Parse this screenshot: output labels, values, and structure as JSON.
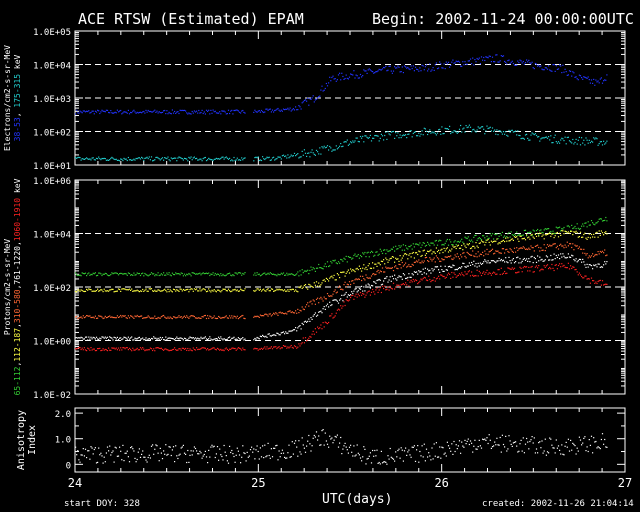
{
  "header": {
    "title": "ACE RTSW (Estimated) EPAM",
    "begin": "Begin: 2002-11-24 00:00:00UTC"
  },
  "footer": {
    "start_doy": "start DOY:  328",
    "xlabel": "UTC(days)",
    "created": "created:  2002-11-26 21:04:14"
  },
  "colors": {
    "background": "#000000",
    "axis": "#ffffff",
    "grid": "#ffffff",
    "e_low": "#2233ff",
    "e_high": "#22cccc",
    "p_low": "#33cc33",
    "p_mid1": "#ffff44",
    "p_mid2": "#ff6633",
    "p_mid3": "#ffffff",
    "p_high": "#ff2222",
    "aniso": "#ffffff"
  },
  "chart_data": [
    {
      "type": "scatter",
      "name": "electrons",
      "ylabel_prefix": "Electrons/cm2-s-sr-MeV",
      "ylabel_ranges": [
        {
          "text": "38-53",
          "color": "#2233ff"
        },
        {
          "text": ", ",
          "color": "#ffffff"
        },
        {
          "text": "175-315",
          "color": "#22cccc"
        },
        {
          "text": " keV",
          "color": "#ffffff"
        }
      ],
      "ytick_labels": [
        "1.0E+05",
        "1.0E+04",
        "1.0E+03",
        "1.0E+02",
        "1.0E+01"
      ],
      "ylim_log10": [
        1,
        5
      ],
      "log_scale": true,
      "gridlines_log10": [
        2,
        3,
        4
      ],
      "x_range_days": [
        24,
        27
      ],
      "data_gap_days": [
        24.93,
        24.97
      ],
      "series": [
        {
          "color_key": "e_low",
          "points": [
            [
              24.0,
              2.6
            ],
            [
              24.3,
              2.6
            ],
            [
              24.6,
              2.6
            ],
            [
              24.93,
              2.6
            ],
            [
              24.97,
              2.6
            ],
            [
              25.1,
              2.65
            ],
            [
              25.2,
              2.7
            ],
            [
              25.3,
              3.0
            ],
            [
              25.4,
              3.6
            ],
            [
              25.5,
              3.7
            ],
            [
              25.7,
              3.85
            ],
            [
              25.9,
              3.9
            ],
            [
              26.0,
              4.0
            ],
            [
              26.15,
              4.1
            ],
            [
              26.3,
              4.2
            ],
            [
              26.5,
              4.0
            ],
            [
              26.65,
              3.9
            ],
            [
              26.75,
              3.6
            ],
            [
              26.85,
              3.45
            ],
            [
              26.9,
              3.7
            ]
          ]
        },
        {
          "color_key": "e_high",
          "points": [
            [
              24.0,
              1.2
            ],
            [
              24.3,
              1.2
            ],
            [
              24.6,
              1.2
            ],
            [
              24.93,
              1.2
            ],
            [
              24.97,
              1.2
            ],
            [
              25.1,
              1.22
            ],
            [
              25.3,
              1.4
            ],
            [
              25.5,
              1.7
            ],
            [
              25.7,
              1.9
            ],
            [
              25.9,
              2.0
            ],
            [
              26.0,
              2.05
            ],
            [
              26.15,
              2.1
            ],
            [
              26.3,
              2.05
            ],
            [
              26.5,
              1.85
            ],
            [
              26.7,
              1.75
            ],
            [
              26.9,
              1.7
            ]
          ]
        }
      ]
    },
    {
      "type": "scatter",
      "name": "protons",
      "ylabel_prefix": "Protons/cm2-s-sr-MeV",
      "ylabel_ranges": [
        {
          "text": "65-112",
          "color": "#33cc33"
        },
        {
          "text": ",",
          "color": "#ffffff"
        },
        {
          "text": "112-187",
          "color": "#ffff44"
        },
        {
          "text": ",",
          "color": "#ffffff"
        },
        {
          "text": "310-580",
          "color": "#ff6633"
        },
        {
          "text": ",",
          "color": "#ffffff"
        },
        {
          "text": "761-1220",
          "color": "#ffffff"
        },
        {
          "text": ",",
          "color": "#ffffff"
        },
        {
          "text": "1060-1910",
          "color": "#ff2222"
        },
        {
          "text": " keV",
          "color": "#ffffff"
        }
      ],
      "ytick_labels": [
        "1.0E+06",
        "1.0E+04",
        "1.0E+02",
        "1.0E+00",
        "1.0E-02"
      ],
      "ylim_log10": [
        -2,
        6
      ],
      "log_scale": true,
      "gridlines_log10": [
        0,
        2,
        4
      ],
      "x_range_days": [
        24,
        27
      ],
      "data_gap_days": [
        24.93,
        24.97
      ],
      "series": [
        {
          "color_key": "p_low",
          "points": [
            [
              24.0,
              2.5
            ],
            [
              24.3,
              2.5
            ],
            [
              24.6,
              2.5
            ],
            [
              24.93,
              2.5
            ],
            [
              24.97,
              2.5
            ],
            [
              25.2,
              2.5
            ],
            [
              25.35,
              2.8
            ],
            [
              25.5,
              3.1
            ],
            [
              25.7,
              3.4
            ],
            [
              25.9,
              3.6
            ],
            [
              26.1,
              3.75
            ],
            [
              26.3,
              3.95
            ],
            [
              26.5,
              4.05
            ],
            [
              26.7,
              4.2
            ],
            [
              26.8,
              4.4
            ],
            [
              26.9,
              4.6
            ]
          ]
        },
        {
          "color_key": "p_mid1",
          "points": [
            [
              24.0,
              1.9
            ],
            [
              24.3,
              1.9
            ],
            [
              24.6,
              1.9
            ],
            [
              24.93,
              1.9
            ],
            [
              24.97,
              1.9
            ],
            [
              25.2,
              1.9
            ],
            [
              25.35,
              2.2
            ],
            [
              25.5,
              2.6
            ],
            [
              25.7,
              3.0
            ],
            [
              25.9,
              3.3
            ],
            [
              26.1,
              3.5
            ],
            [
              26.3,
              3.75
            ],
            [
              26.5,
              3.9
            ],
            [
              26.7,
              4.05
            ],
            [
              26.8,
              3.9
            ],
            [
              26.9,
              4.1
            ]
          ]
        },
        {
          "color_key": "p_mid2",
          "points": [
            [
              24.0,
              0.9
            ],
            [
              24.3,
              0.9
            ],
            [
              24.6,
              0.9
            ],
            [
              24.93,
              0.9
            ],
            [
              24.97,
              0.9
            ],
            [
              25.2,
              1.1
            ],
            [
              25.35,
              1.6
            ],
            [
              25.5,
              2.2
            ],
            [
              25.7,
              2.7
            ],
            [
              25.9,
              3.0
            ],
            [
              26.1,
              3.2
            ],
            [
              26.3,
              3.35
            ],
            [
              26.5,
              3.45
            ],
            [
              26.7,
              3.6
            ],
            [
              26.8,
              3.2
            ],
            [
              26.9,
              3.3
            ]
          ]
        },
        {
          "color_key": "p_mid3",
          "points": [
            [
              24.0,
              0.1
            ],
            [
              24.3,
              0.1
            ],
            [
              24.6,
              0.1
            ],
            [
              24.93,
              0.1
            ],
            [
              24.97,
              0.1
            ],
            [
              25.2,
              0.4
            ],
            [
              25.35,
              1.2
            ],
            [
              25.5,
              1.8
            ],
            [
              25.7,
              2.3
            ],
            [
              25.9,
              2.6
            ],
            [
              26.1,
              2.8
            ],
            [
              26.3,
              3.0
            ],
            [
              26.5,
              3.05
            ],
            [
              26.7,
              3.2
            ],
            [
              26.8,
              2.8
            ],
            [
              26.9,
              2.9
            ]
          ]
        },
        {
          "color_key": "p_high",
          "points": [
            [
              24.0,
              -0.3
            ],
            [
              24.3,
              -0.3
            ],
            [
              24.6,
              -0.3
            ],
            [
              24.93,
              -0.3
            ],
            [
              24.97,
              -0.3
            ],
            [
              25.2,
              -0.2
            ],
            [
              25.35,
              0.6
            ],
            [
              25.5,
              1.6
            ],
            [
              25.7,
              2.0
            ],
            [
              25.9,
              2.3
            ],
            [
              26.1,
              2.5
            ],
            [
              26.3,
              2.6
            ],
            [
              26.5,
              2.7
            ],
            [
              26.7,
              2.8
            ],
            [
              26.8,
              2.3
            ],
            [
              26.9,
              2.1
            ]
          ]
        }
      ]
    },
    {
      "type": "scatter",
      "name": "anisotropy",
      "ylabel": "Anisotropy Index",
      "ytick_labels": [
        "2.0",
        "1.0",
        "0"
      ],
      "ylim": [
        -0.3,
        2.2
      ],
      "log_scale": false,
      "x_range_days": [
        24,
        27
      ],
      "xtick_labels": [
        "24",
        "25",
        "26",
        "27"
      ],
      "series": [
        {
          "color_key": "aniso",
          "points": [
            [
              24.0,
              0.4
            ],
            [
              24.5,
              0.45
            ],
            [
              24.9,
              0.4
            ],
            [
              25.2,
              0.6
            ],
            [
              25.35,
              1.1
            ],
            [
              25.5,
              0.6
            ],
            [
              25.6,
              0.3
            ],
            [
              25.8,
              0.35
            ],
            [
              26.0,
              0.6
            ],
            [
              26.2,
              0.9
            ],
            [
              26.4,
              0.8
            ],
            [
              26.6,
              0.7
            ],
            [
              26.8,
              0.8
            ],
            [
              26.9,
              0.9
            ]
          ]
        }
      ]
    }
  ]
}
